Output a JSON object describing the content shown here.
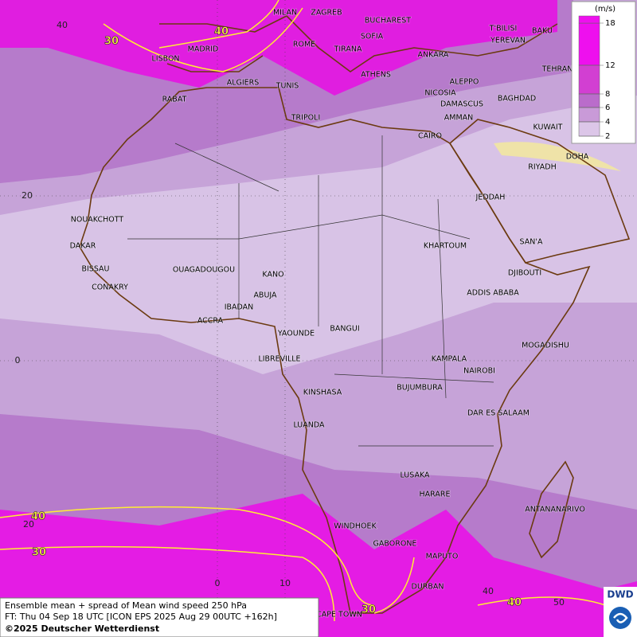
{
  "map": {
    "cities": [
      "MILAN",
      "ZAGREB",
      "BUCHAREST",
      "T'BILISI",
      "BAKU",
      "ROME",
      "SOFIA",
      "YEREVAN",
      "LISBON",
      "MADRID",
      "TIRANA",
      "ANKARA",
      "TEHRAN",
      "ALGIERS",
      "TUNIS",
      "ATHENS",
      "ALEPPO",
      "RABAT",
      "NICOSIA",
      "BAGHDAD",
      "DAMASCUS",
      "AMMAN",
      "TRIPOLI",
      "KUWAIT",
      "CAIRO",
      "DOHA",
      "RIYADH",
      "JEDDAH",
      "NOUAKCHOTT",
      "SAN'A",
      "DAKAR",
      "KHARTOUM",
      "BISSAU",
      "OUAGADOUGOU",
      "KANO",
      "DJIBOUTI",
      "CONAKRY",
      "ABUJA",
      "ADDIS ABABA",
      "IBADAN",
      "ACCRA",
      "BANGUI",
      "YAOUNDE",
      "MOGADISHU",
      "LIBREVILLE",
      "KAMPALA",
      "NAIROBI",
      "BUJUMBURA",
      "KINSHASA",
      "DAR ES SALAAM",
      "LUANDA",
      "LUSAKA",
      "HARARE",
      "ANTANANARIVO",
      "WINDHOEK",
      "GABORONE",
      "MAPUTO",
      "DURBAN",
      "CAPE TOWN"
    ],
    "contour_labels": [
      "30",
      "40",
      "40",
      "30",
      "30",
      "40"
    ],
    "grid_labels": [
      "40",
      "20",
      "0",
      "20",
      "0",
      "10",
      "40",
      "50"
    ]
  },
  "legend": {
    "unit": "(m/s)",
    "levels": [
      18,
      12,
      8,
      6,
      4,
      2
    ],
    "colors": [
      "#ee10ee",
      "#d23fd2",
      "#ba6ccb",
      "#c99ad8",
      "#dcc6e8"
    ]
  },
  "caption": {
    "line1": "Ensemble mean + spread of Mean wind speed 250 hPa",
    "line2": "FT: Thu 04 Sep 18 UTC [ICON EPS 2025 Aug 29 00UTC +162h]",
    "line3": "©2025 Deutscher Wetterdienst"
  },
  "logo": "DWD"
}
